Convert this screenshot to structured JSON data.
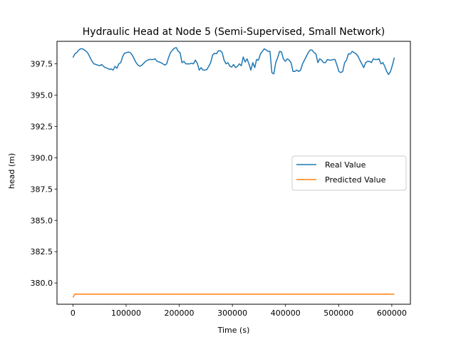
{
  "chart_data": {
    "type": "line",
    "title": "Hydraulic Head at Node 5 (Semi-Supervised, Small Network)",
    "xlabel": "Time (s)",
    "ylabel": "head (m)",
    "xlim": [
      -30000,
      635000
    ],
    "ylim": [
      378.3,
      399.3
    ],
    "xticks": [
      0,
      100000,
      200000,
      300000,
      400000,
      500000,
      600000
    ],
    "xtick_labels": [
      "0",
      "100000",
      "200000",
      "300000",
      "400000",
      "500000",
      "600000"
    ],
    "yticks": [
      380.0,
      382.5,
      385.0,
      387.5,
      390.0,
      392.5,
      395.0,
      397.5
    ],
    "ytick_labels": [
      "380.0",
      "382.5",
      "385.0",
      "387.5",
      "390.0",
      "392.5",
      "395.0",
      "397.5"
    ],
    "grid": false,
    "legend_position": "center-right",
    "series": [
      {
        "name": "Real Value",
        "color": "#1f77b4",
        "x": [
          0,
          3600,
          7200,
          10800,
          14400,
          18000,
          21600,
          25200,
          28800,
          32400,
          36000,
          39600,
          43200,
          46800,
          50400,
          54000,
          57600,
          61200,
          64800,
          68400,
          72000,
          75600,
          79200,
          82800,
          86400,
          90000,
          93600,
          97200,
          100800,
          104400,
          108000,
          111600,
          115200,
          118800,
          122400,
          126000,
          129600,
          133200,
          136800,
          140400,
          144000,
          147600,
          151200,
          154800,
          158400,
          162000,
          165600,
          169200,
          172800,
          176400,
          180000,
          183600,
          187200,
          190800,
          194400,
          198000,
          201600,
          205200,
          208800,
          212400,
          216000,
          219600,
          223200,
          226800,
          230400,
          234000,
          237600,
          241200,
          244800,
          248400,
          252000,
          255600,
          259200,
          262800,
          266400,
          270000,
          273600,
          277200,
          280800,
          284400,
          288000,
          291600,
          295200,
          298800,
          302400,
          306000,
          309600,
          313200,
          316800,
          320400,
          324000,
          327600,
          331200,
          334800,
          338400,
          342000,
          345600,
          349200,
          352800,
          356400,
          360000,
          363600,
          367200,
          370800,
          374400,
          378000,
          381600,
          385200,
          388800,
          392400,
          396000,
          399600,
          403200,
          406800,
          410400,
          414000,
          417600,
          421200,
          424800,
          428400,
          432000,
          435600,
          439200,
          442800,
          446400,
          450000,
          453600,
          457200,
          460800,
          464400,
          468000,
          471600,
          475200,
          478800,
          482400,
          486000,
          489600,
          493200,
          496800,
          500400,
          504000,
          507600,
          511200,
          514800,
          518400,
          522000,
          525600,
          529200,
          532800,
          536400,
          540000,
          543600,
          547200,
          550800,
          554400,
          558000,
          561600,
          565200,
          568800,
          572400,
          576000,
          579600,
          583200,
          586800,
          590400,
          594000,
          597600,
          601200,
          604800
        ],
        "values": [
          398.0,
          398.3,
          398.4,
          398.6,
          398.7,
          398.7,
          398.6,
          398.5,
          398.3,
          398.0,
          397.7,
          397.5,
          397.45,
          397.4,
          397.35,
          397.45,
          397.3,
          397.2,
          397.15,
          397.05,
          397.1,
          397.0,
          397.3,
          397.15,
          397.5,
          397.6,
          398.1,
          398.35,
          398.4,
          398.45,
          398.4,
          398.2,
          397.9,
          397.6,
          397.4,
          397.3,
          397.4,
          397.55,
          397.7,
          397.8,
          397.85,
          397.85,
          397.85,
          397.9,
          397.7,
          397.65,
          397.6,
          397.5,
          397.4,
          397.5,
          398.0,
          398.4,
          398.6,
          398.75,
          398.8,
          398.5,
          398.4,
          397.6,
          397.7,
          397.5,
          397.5,
          397.5,
          397.55,
          397.5,
          397.8,
          397.55,
          397.0,
          397.2,
          397.0,
          397.0,
          397.05,
          397.3,
          397.6,
          398.2,
          398.35,
          398.3,
          398.55,
          398.55,
          398.4,
          397.8,
          397.5,
          397.6,
          397.3,
          397.25,
          397.45,
          397.2,
          397.3,
          397.5,
          397.35,
          398.05,
          397.65,
          397.9,
          397.5,
          397.0,
          397.6,
          397.2,
          397.85,
          397.8,
          398.3,
          398.5,
          398.7,
          398.6,
          398.5,
          398.5,
          396.8,
          396.7,
          397.6,
          398.0,
          398.5,
          398.45,
          397.9,
          397.7,
          397.9,
          397.8,
          397.6,
          396.9,
          396.9,
          397.0,
          396.9,
          397.0,
          397.5,
          397.8,
          398.1,
          398.4,
          398.6,
          398.6,
          398.4,
          398.3,
          397.6,
          397.9,
          397.8,
          397.6,
          397.6,
          397.85,
          397.8,
          397.8,
          397.85,
          397.85,
          397.4,
          396.9,
          396.8,
          396.9,
          397.6,
          397.8,
          398.3,
          398.3,
          398.5,
          398.4,
          398.3,
          398.1,
          397.8,
          397.5,
          397.2,
          397.6,
          397.7,
          397.7,
          397.6,
          397.9,
          397.85,
          397.85,
          397.9,
          397.5,
          397.6,
          397.3,
          396.9,
          396.65,
          396.9,
          397.4,
          398.0
        ]
      },
      {
        "name": "Predicted Value",
        "color": "#ff7f0e",
        "x": [
          0,
          3600,
          7200,
          14400,
          600000,
          604800
        ],
        "values": [
          378.85,
          379.1,
          379.1,
          379.1,
          379.1,
          379.1
        ]
      }
    ]
  }
}
